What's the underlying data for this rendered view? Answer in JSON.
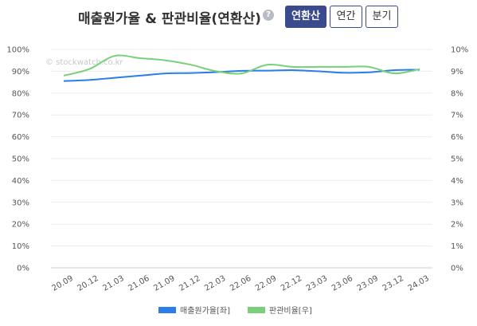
{
  "header": {
    "title": "매출원가율 & 판관비율(연환산)",
    "help_glyph": "?",
    "tabs": [
      {
        "label": "연환산",
        "active": true
      },
      {
        "label": "연간",
        "active": false
      },
      {
        "label": "분기",
        "active": false
      }
    ]
  },
  "watermark": "© stockwatch.co.kr",
  "chart_data": {
    "type": "line",
    "title": "매출원가율 & 판관비율(연환산)",
    "categories": [
      "20.09",
      "20.12",
      "21.03",
      "21.06",
      "21.09",
      "21.12",
      "22.03",
      "22.06",
      "22.09",
      "22.12",
      "23.03",
      "23.06",
      "23.09",
      "23.12",
      "24.03"
    ],
    "series": [
      {
        "name": "매출원가율[좌]",
        "axis": "left",
        "color": "#2b7de9",
        "values": [
          85.5,
          86.0,
          87.0,
          88.0,
          89.0,
          89.2,
          89.6,
          90.2,
          90.3,
          90.5,
          90.0,
          89.3,
          89.5,
          90.5,
          90.7
        ]
      },
      {
        "name": "판관비율[우]",
        "axis": "right",
        "color": "#78d078",
        "values": [
          8.8,
          9.1,
          9.7,
          9.6,
          9.5,
          9.3,
          9.0,
          8.9,
          9.3,
          9.2,
          9.2,
          9.2,
          9.2,
          8.9,
          9.1
        ]
      }
    ],
    "y_left": {
      "min": 0,
      "max": 100,
      "step": 10,
      "suffix": "%"
    },
    "y_right": {
      "min": 0,
      "max": 10,
      "step": 1,
      "suffix": "%"
    },
    "grid": true,
    "legend_position": "bottom"
  }
}
